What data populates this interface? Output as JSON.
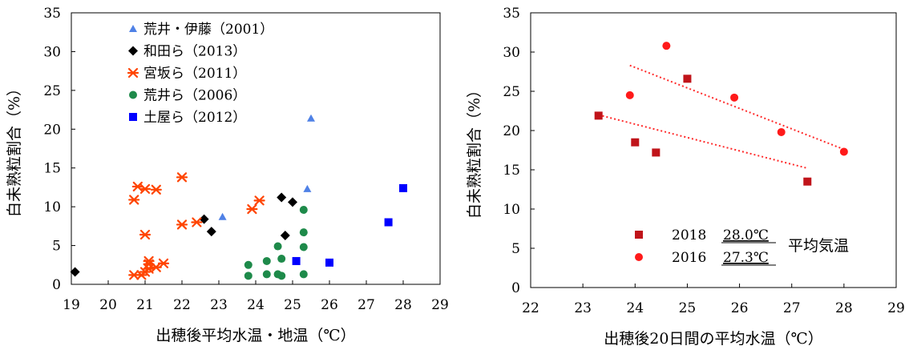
{
  "chart_data": [
    {
      "type": "scatter",
      "xlabel": "出穂後平均水温・地温（℃）",
      "ylabel": "白未熟粒割合（%）",
      "xlim": [
        19,
        29
      ],
      "ylim": [
        0,
        35
      ],
      "xticks": [
        19,
        20,
        21,
        22,
        23,
        24,
        25,
        26,
        27,
        28,
        29
      ],
      "yticks": [
        0,
        5,
        10,
        15,
        20,
        25,
        30,
        35
      ],
      "legend_position": "top-left",
      "series": [
        {
          "name": "荒井・伊藤（2001）",
          "marker": "triangle",
          "color": "#4f81e6",
          "points": [
            [
              23.1,
              8.7
            ],
            [
              25.4,
              12.3
            ],
            [
              25.5,
              21.4
            ]
          ]
        },
        {
          "name": "和田ら（2013）",
          "marker": "diamond",
          "color": "#000000",
          "points": [
            [
              19.1,
              1.6
            ],
            [
              22.6,
              8.4
            ],
            [
              22.8,
              6.8
            ],
            [
              24.7,
              11.2
            ],
            [
              24.8,
              6.3
            ],
            [
              25.0,
              10.6
            ]
          ]
        },
        {
          "name": "宮坂ら（2011）",
          "marker": "asterisk",
          "color": "#ff4500",
          "points": [
            [
              20.7,
              10.9
            ],
            [
              20.7,
              1.2
            ],
            [
              20.8,
              12.6
            ],
            [
              20.9,
              1.2
            ],
            [
              21.0,
              12.3
            ],
            [
              21.0,
              6.4
            ],
            [
              21.0,
              1.6
            ],
            [
              21.1,
              2.0
            ],
            [
              21.1,
              2.6
            ],
            [
              21.1,
              3.0
            ],
            [
              21.3,
              2.2
            ],
            [
              21.3,
              12.2
            ],
            [
              21.5,
              2.7
            ],
            [
              22.0,
              13.8
            ],
            [
              22.0,
              7.7
            ],
            [
              22.4,
              8.0
            ],
            [
              23.9,
              9.7
            ],
            [
              24.1,
              10.8
            ]
          ]
        },
        {
          "name": "荒井ら（2006）",
          "marker": "circle",
          "color": "#1e8a4a",
          "points": [
            [
              23.8,
              2.5
            ],
            [
              23.8,
              1.1
            ],
            [
              24.3,
              3.0
            ],
            [
              24.3,
              1.3
            ],
            [
              24.6,
              4.9
            ],
            [
              24.6,
              1.3
            ],
            [
              24.7,
              1.1
            ],
            [
              24.7,
              3.3
            ],
            [
              25.3,
              9.6
            ],
            [
              25.3,
              6.7
            ],
            [
              25.3,
              4.8
            ],
            [
              25.3,
              1.3
            ]
          ]
        },
        {
          "name": "土屋ら（2012）",
          "marker": "square",
          "color": "#0000ff",
          "points": [
            [
              25.1,
              3.0
            ],
            [
              26.0,
              2.8
            ],
            [
              27.6,
              8.0
            ],
            [
              28.0,
              12.4
            ]
          ]
        }
      ]
    },
    {
      "type": "scatter",
      "xlabel": "出穂後20日間の平均水温（℃）",
      "ylabel": "白未熟粒割合（%）",
      "xlim": [
        22,
        29
      ],
      "ylim": [
        0,
        35
      ],
      "xticks": [
        22,
        23,
        24,
        25,
        26,
        27,
        28,
        29
      ],
      "yticks": [
        0,
        5,
        10,
        15,
        20,
        25,
        30,
        35
      ],
      "legend_position": "bottom-left",
      "legend_annotation": "平均気温",
      "series": [
        {
          "name": "2018",
          "avg_temp": "28.0℃",
          "marker": "square",
          "color": "#c0141a",
          "points": [
            [
              23.3,
              21.9
            ],
            [
              24.0,
              18.5
            ],
            [
              24.4,
              17.2
            ],
            [
              25.0,
              26.6
            ],
            [
              27.3,
              13.5
            ]
          ],
          "trendline": [
            [
              23.3,
              22.0
            ],
            [
              27.3,
              15.2
            ]
          ]
        },
        {
          "name": "2016",
          "avg_temp": "27.3℃",
          "marker": "circle",
          "color": "#ff1a1a",
          "points": [
            [
              23.9,
              24.5
            ],
            [
              24.6,
              30.8
            ],
            [
              25.9,
              24.2
            ],
            [
              26.8,
              19.8
            ],
            [
              28.0,
              17.3
            ]
          ],
          "trendline": [
            [
              23.9,
              28.3
            ],
            [
              28.0,
              17.6
            ]
          ]
        }
      ]
    }
  ]
}
